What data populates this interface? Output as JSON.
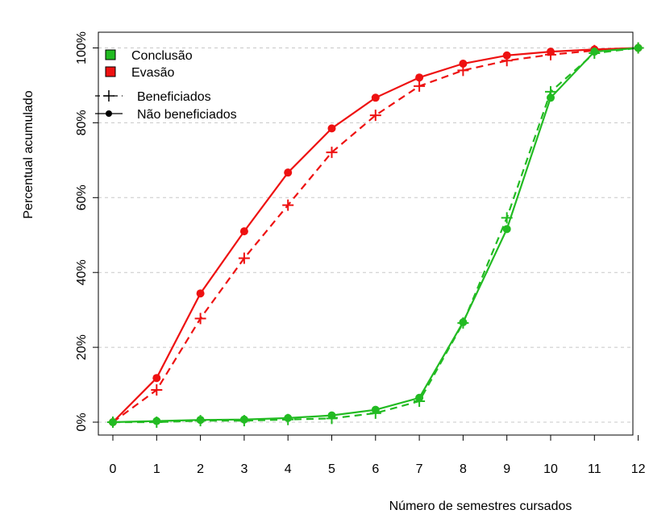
{
  "chart_data": {
    "type": "line",
    "xlabel": "Número de semestres cursados",
    "ylabel": "Percentual acumulado",
    "x": [
      0,
      1,
      2,
      3,
      4,
      5,
      6,
      7,
      8,
      9,
      10,
      11,
      12
    ],
    "x_ticks": [
      "0",
      "1",
      "2",
      "3",
      "4",
      "5",
      "6",
      "7",
      "8",
      "9",
      "10",
      "11",
      "12"
    ],
    "y_ticks": [
      "0%",
      "20%",
      "40%",
      "60%",
      "80%",
      "100%"
    ],
    "y_tick_values": [
      0,
      20,
      40,
      60,
      80,
      100
    ],
    "xlim": [
      -0.2,
      12.3
    ],
    "ylim": [
      -4,
      104
    ],
    "grid": "horizontal-dashed",
    "legend_placement": "top-left",
    "legend": {
      "color_entries": [
        {
          "label": "Conclusão",
          "color": "#22bb22"
        },
        {
          "label": "Evasão",
          "color": "#ee1111"
        }
      ],
      "style_entries": [
        {
          "label": "Beneficiados",
          "line": "dashed",
          "marker": "plus"
        },
        {
          "label": "Não beneficiados",
          "line": "solid",
          "marker": "dot"
        }
      ]
    },
    "series": [
      {
        "group": "Evasão",
        "subgroup": "Não beneficiados",
        "color": "#ee1111",
        "line": "solid",
        "marker": "dot",
        "values": [
          0,
          11.8,
          34.4,
          51.0,
          66.7,
          78.5,
          86.7,
          92.1,
          95.8,
          98.0,
          99.0,
          99.6,
          100
        ]
      },
      {
        "group": "Evasão",
        "subgroup": "Beneficiados",
        "color": "#ee1111",
        "line": "dashed",
        "marker": "plus",
        "values": [
          0,
          8.6,
          27.7,
          43.8,
          58.0,
          72.1,
          82.0,
          89.8,
          94.0,
          96.6,
          98.2,
          99.3,
          100
        ]
      },
      {
        "group": "Conclusão",
        "subgroup": "Não beneficiados",
        "color": "#22bb22",
        "line": "solid",
        "marker": "dot",
        "values": [
          0,
          0.3,
          0.6,
          0.7,
          1.1,
          1.8,
          3.3,
          6.5,
          26.7,
          51.6,
          86.7,
          99.0,
          100
        ]
      },
      {
        "group": "Conclusão",
        "subgroup": "Beneficiados",
        "color": "#22bb22",
        "line": "dashed",
        "marker": "plus",
        "values": [
          0,
          0.0,
          0.4,
          0.4,
          0.7,
          1.0,
          2.4,
          5.6,
          26.5,
          54.6,
          88.3,
          98.6,
          100
        ]
      }
    ]
  }
}
